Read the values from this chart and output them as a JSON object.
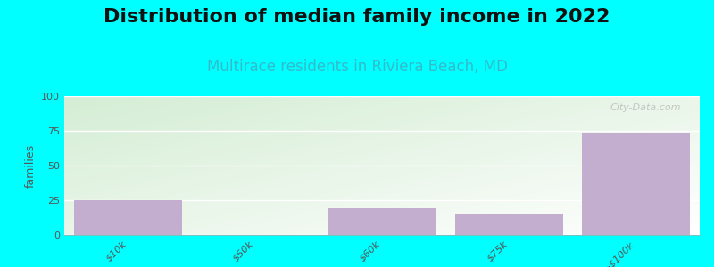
{
  "title": "Distribution of median family income in 2022",
  "subtitle": "Multirace residents in Riviera Beach, MD",
  "categories": [
    "$10k",
    "$50k",
    "$60k",
    "$75k",
    ">$100k"
  ],
  "values": [
    25,
    0,
    19,
    15,
    74
  ],
  "bar_color": "#c4aed0",
  "background_color": "#00ffff",
  "plot_bg_top_left": "#d4edd4",
  "plot_bg_bottom_right": "#ffffff",
  "ylabel": "families",
  "ylim": [
    0,
    100
  ],
  "yticks": [
    0,
    25,
    50,
    75,
    100
  ],
  "title_fontsize": 16,
  "subtitle_fontsize": 12,
  "subtitle_color": "#33bbcc",
  "watermark": "City-Data.com",
  "bar_width": 0.85,
  "grid_color": "#dddddd"
}
